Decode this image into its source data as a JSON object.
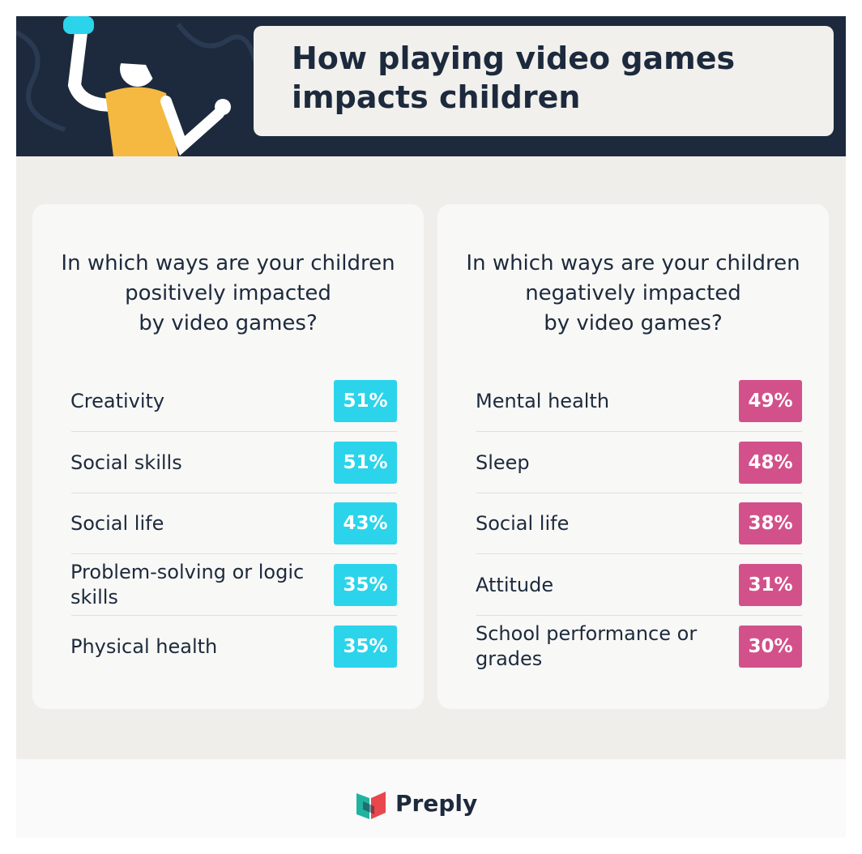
{
  "header": {
    "title": "How playing video games impacts children"
  },
  "panels": [
    {
      "question": "In which ways are your children\npositively impacted\nby video games?",
      "color": "#2bd4ea",
      "rows": [
        {
          "label": "Creativity",
          "value": "51%"
        },
        {
          "label": "Social skills",
          "value": "51%"
        },
        {
          "label": "Social life",
          "value": "43%"
        },
        {
          "label": "Problem-solving or logic skills",
          "value": "35%"
        },
        {
          "label": "Physical health",
          "value": "35%"
        }
      ]
    },
    {
      "question": "In which ways are your children\nnegatively impacted\nby video games?",
      "color": "#d2518a",
      "rows": [
        {
          "label": "Mental health",
          "value": "49%"
        },
        {
          "label": "Sleep",
          "value": "48%"
        },
        {
          "label": "Social life",
          "value": "38%"
        },
        {
          "label": "Attitude",
          "value": "31%"
        },
        {
          "label": "School performance or grades",
          "value": "30%"
        }
      ]
    }
  ],
  "footer": {
    "brand": "Preply"
  }
}
